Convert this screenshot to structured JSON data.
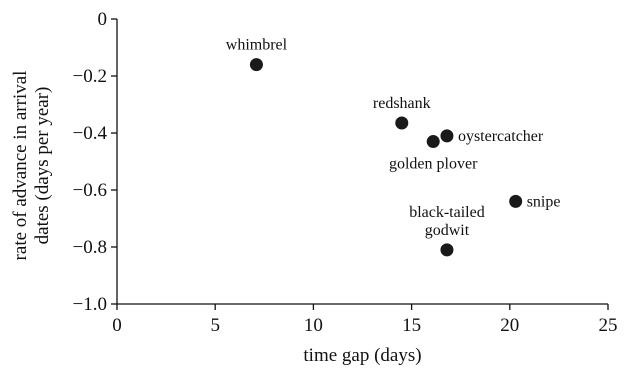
{
  "chart_data": {
    "type": "scatter",
    "title": "",
    "xlabel": "time gap (days)",
    "ylabel_lines": [
      "rate of advance in arrival",
      "dates (days per year)"
    ],
    "xlim": [
      0,
      25
    ],
    "ylim": [
      -1.0,
      0
    ],
    "xticks": [
      {
        "value": 0,
        "label": "0"
      },
      {
        "value": 5,
        "label": "5"
      },
      {
        "value": 10,
        "label": "10"
      },
      {
        "value": 15,
        "label": "15"
      },
      {
        "value": 20,
        "label": "20"
      },
      {
        "value": 25,
        "label": "25"
      }
    ],
    "yticks": [
      {
        "value": 0,
        "label": "0"
      },
      {
        "value": -0.2,
        "label": "−0.2"
      },
      {
        "value": -0.4,
        "label": "−0.4"
      },
      {
        "value": -0.6,
        "label": "−0.6"
      },
      {
        "value": -0.8,
        "label": "−0.8"
      },
      {
        "value": -1.0,
        "label": "−1.0"
      }
    ],
    "grid": false,
    "legend": "none",
    "point_color": "#1a1a1a",
    "points": [
      {
        "label_lines": [
          "whimbrel"
        ],
        "x": 7.1,
        "y": -0.16,
        "label_pos": "above"
      },
      {
        "label_lines": [
          "redshank"
        ],
        "x": 14.5,
        "y": -0.365,
        "label_pos": "above"
      },
      {
        "label_lines": [
          "golden plover"
        ],
        "x": 16.1,
        "y": -0.43,
        "label_pos": "below"
      },
      {
        "label_lines": [
          "oystercatcher"
        ],
        "x": 16.8,
        "y": -0.41,
        "label_pos": "right"
      },
      {
        "label_lines": [
          "snipe"
        ],
        "x": 20.3,
        "y": -0.64,
        "label_pos": "right"
      },
      {
        "label_lines": [
          "black-tailed",
          "godwit"
        ],
        "x": 16.8,
        "y": -0.81,
        "label_pos": "above"
      }
    ]
  }
}
